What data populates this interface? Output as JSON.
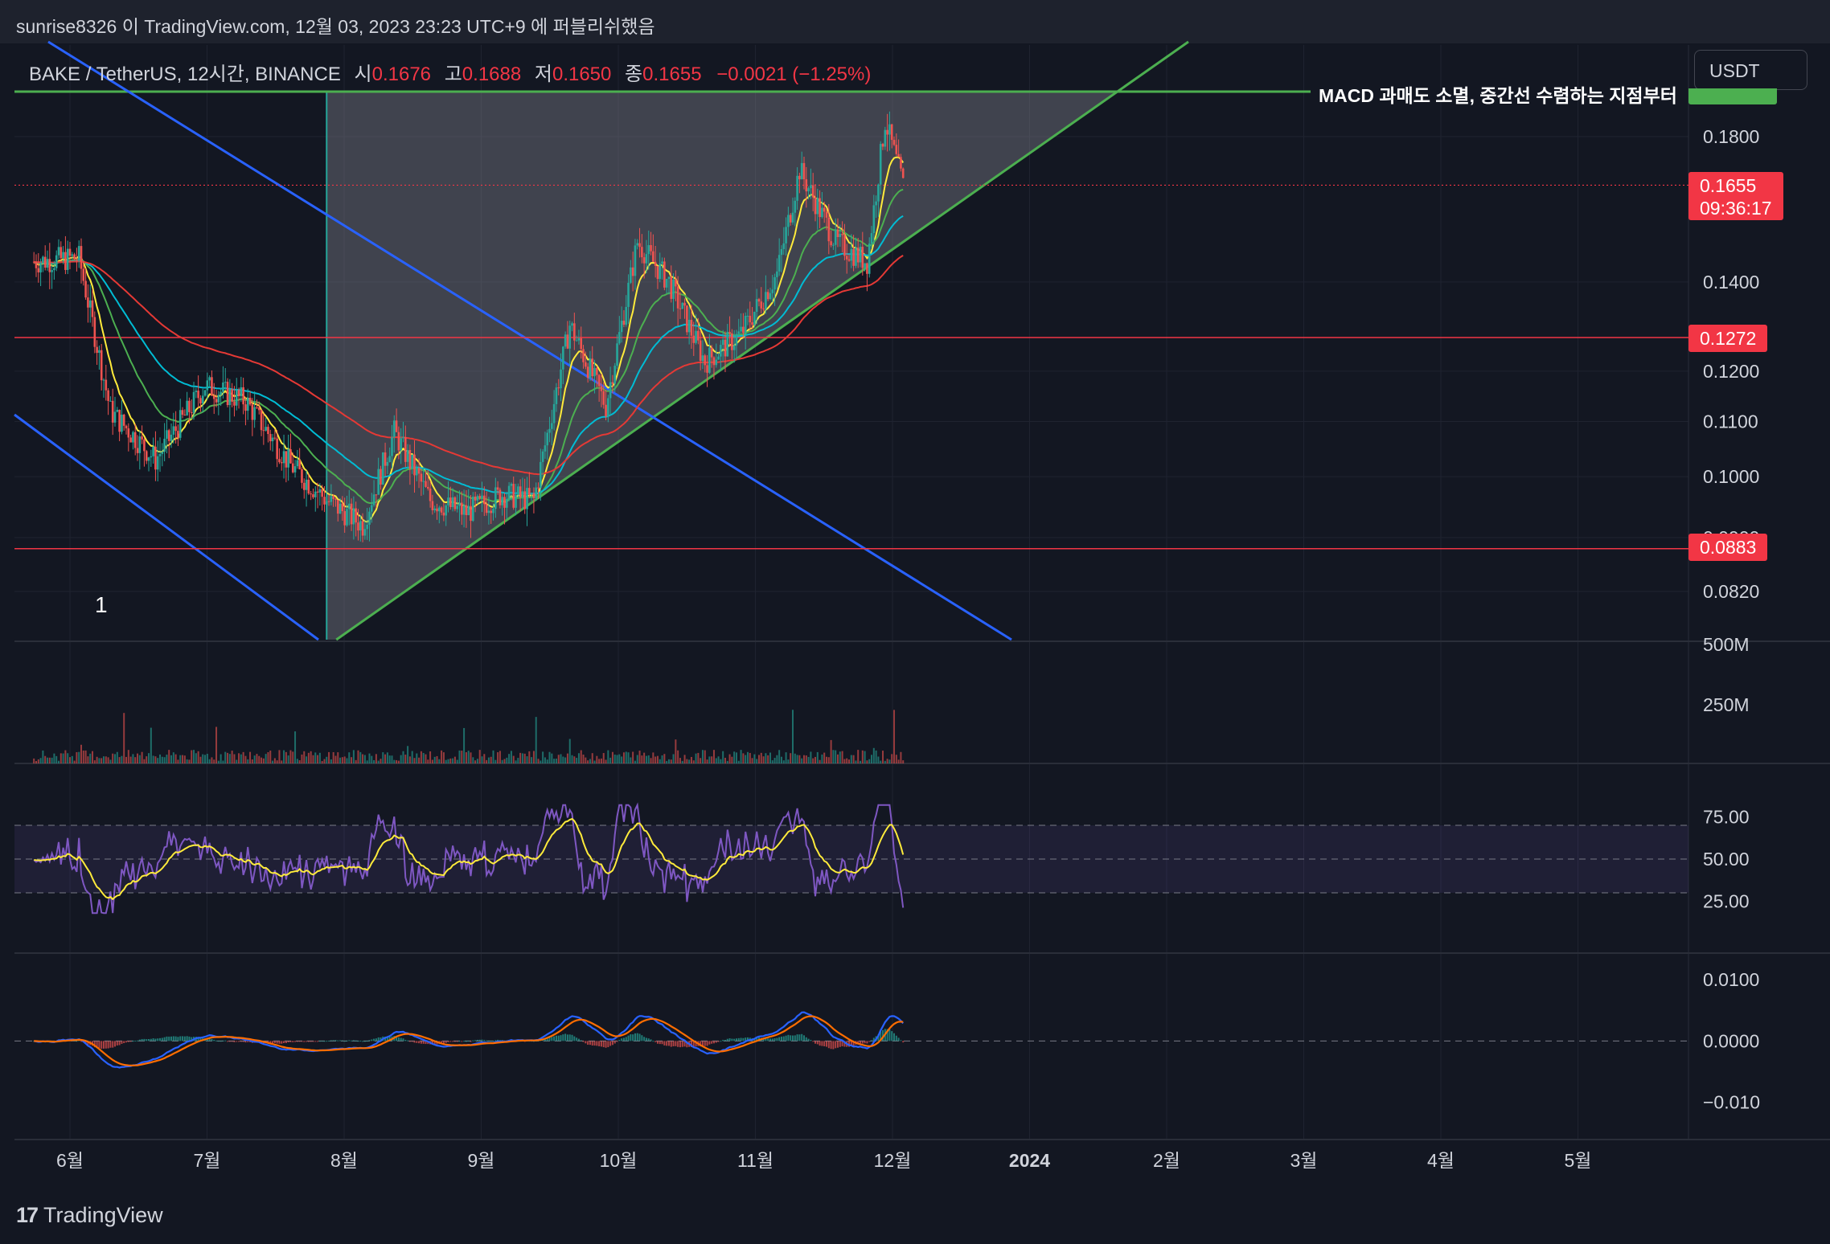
{
  "header": {
    "publisher_text": "sunrise8326 이 TradingView.com, 12월 03, 2023 23:23 UTC+9 에 퍼블리쉬했음"
  },
  "legend": {
    "symbol_text": "BAKE / TetherUS, 12시간, BINANCE",
    "open_label": "시",
    "open_value": "0.1676",
    "high_label": "고",
    "high_value": "0.1688",
    "low_label": "저",
    "low_value": "0.1650",
    "close_label": "종",
    "close_value": "0.1655",
    "change_text": "−0.0021 (−1.25%)"
  },
  "toolbar": {
    "currency": "USDT"
  },
  "annotation_text": "MACD 과매도 소멸, 중간선 수렴하는 지점부터",
  "wave_label": "1",
  "price_tags": {
    "current_price": "0.1655",
    "countdown": "09:36:17",
    "support_top": "0.1272",
    "support_bottom": "0.0883"
  },
  "branding": {
    "logo_mark": "17",
    "logo_text": "TradingView"
  },
  "colors": {
    "background": "#131722",
    "up_candle": "#26a69a",
    "down_candle": "#ef5350",
    "channel_line": "#2962ff",
    "triangle_line": "#4caf50",
    "horizontal_level": "#f23645",
    "rsi_line": "#7e57c2",
    "rsi_ma": "#ffeb3b",
    "macd_line": "#2962ff",
    "signal_line": "#ff6d00",
    "price_tag_red": "#f23645",
    "price_tag_green": "#4caf50"
  },
  "chart_data": [
    {
      "type": "candlestick",
      "symbol": "BAKE / TetherUS",
      "interval": "12시간",
      "exchange": "BINANCE",
      "x_tick_labels": [
        "6월",
        "7월",
        "8월",
        "9월",
        "10월",
        "11월",
        "12월",
        "2024",
        "2월",
        "3월",
        "4월",
        "5월"
      ],
      "y_tick_labels": [
        "0.0820",
        "0.0900",
        "0.1000",
        "0.1100",
        "0.1200",
        "0.1400",
        "0.1800"
      ],
      "ylim": [
        0.077,
        0.205
      ],
      "y_scale": "log",
      "series_path_monthly": {
        "x": [
          "2023-05-24",
          "2023-06-03",
          "2023-06-10",
          "2023-06-20",
          "2023-07-01",
          "2023-07-10",
          "2023-07-20",
          "2023-07-28",
          "2023-08-05",
          "2023-08-12",
          "2023-08-20",
          "2023-08-28",
          "2023-09-05",
          "2023-09-12",
          "2023-09-20",
          "2023-09-28",
          "2023-10-05",
          "2023-10-12",
          "2023-10-20",
          "2023-10-28",
          "2023-11-05",
          "2023-11-10",
          "2023-11-18",
          "2023-11-25",
          "2023-11-29",
          "2023-12-03"
        ],
        "close": [
          0.145,
          0.146,
          0.112,
          0.103,
          0.117,
          0.114,
          0.102,
          0.096,
          0.092,
          0.108,
          0.096,
          0.094,
          0.097,
          0.096,
          0.13,
          0.113,
          0.15,
          0.14,
          0.122,
          0.128,
          0.142,
          0.17,
          0.15,
          0.145,
          0.185,
          0.1655
        ]
      },
      "horizontal_levels": [
        0.1272,
        0.0883
      ],
      "last_close": 0.1655,
      "annotation": "MACD 과매도 소멸, 중간선 수렴하는 지점부터",
      "wave_label": "1"
    },
    {
      "type": "bar",
      "name": "volume",
      "y_tick_labels": [
        "250M",
        "500M"
      ]
    },
    {
      "type": "line",
      "name": "RSI",
      "y_tick_labels": [
        "25.00",
        "50.00",
        "75.00"
      ],
      "ylim": [
        0,
        100
      ],
      "band": [
        30,
        70
      ]
    },
    {
      "type": "line",
      "name": "MACD",
      "y_tick_labels": [
        "−0.010",
        "0.0000",
        "0.0100"
      ],
      "ylim": [
        -0.014,
        0.012
      ]
    }
  ]
}
